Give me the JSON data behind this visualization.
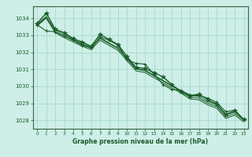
{
  "background_color": "#ceeee8",
  "grid_color": "#aaddcc",
  "line_color": "#1a5c28",
  "x_label": "Graphe pression niveau de la mer (hPa)",
  "ylim": [
    1027.5,
    1034.7
  ],
  "xlim": [
    -0.5,
    23.5
  ],
  "yticks": [
    1028,
    1029,
    1030,
    1031,
    1032,
    1033,
    1034
  ],
  "xticks": [
    0,
    1,
    2,
    3,
    4,
    5,
    6,
    7,
    8,
    9,
    10,
    11,
    12,
    13,
    14,
    15,
    16,
    17,
    18,
    19,
    20,
    21,
    22,
    23
  ],
  "series_no_marker": [
    [
      1033.65,
      1034.1,
      1033.3,
      1033.05,
      1032.75,
      1032.5,
      1032.3,
      1032.85,
      1032.55,
      1032.25,
      1031.65,
      1031.05,
      1030.95,
      1030.65,
      1030.35,
      1030.05,
      1029.75,
      1029.45,
      1029.4,
      1029.1,
      1028.9,
      1028.3,
      1028.5,
      1028.05
    ],
    [
      1033.55,
      1034.0,
      1033.15,
      1032.85,
      1032.6,
      1032.35,
      1032.15,
      1032.7,
      1032.4,
      1032.1,
      1031.5,
      1030.9,
      1030.8,
      1030.5,
      1030.2,
      1029.9,
      1029.6,
      1029.25,
      1029.2,
      1028.9,
      1028.7,
      1028.1,
      1028.3,
      1027.9
    ],
    [
      1033.6,
      1034.05,
      1033.2,
      1032.95,
      1032.7,
      1032.45,
      1032.25,
      1032.8,
      1032.5,
      1032.2,
      1031.6,
      1031.0,
      1030.9,
      1030.6,
      1030.3,
      1030.0,
      1029.7,
      1029.35,
      1029.3,
      1029.0,
      1028.8,
      1028.2,
      1028.4,
      1028.0
    ]
  ],
  "main_series": [
    1033.7,
    1034.3,
    1033.35,
    1033.15,
    1032.8,
    1032.6,
    1032.35,
    1033.05,
    1032.75,
    1032.45,
    1031.75,
    1031.1,
    1031.05,
    1030.8,
    1030.55,
    1030.1,
    1029.65,
    1029.4,
    1029.55,
    1029.2,
    1028.95,
    1028.35,
    1028.55,
    1028.05
  ],
  "line2_series": [
    1033.6,
    1033.25,
    1033.2,
    1032.95,
    1032.7,
    1032.4,
    1032.25,
    1032.9,
    1032.7,
    1032.4,
    1031.55,
    1031.35,
    1031.3,
    1030.7,
    1030.1,
    1029.8,
    1029.75,
    1029.5,
    1029.45,
    1029.3,
    1029.05,
    1028.5,
    1028.6,
    1028.05
  ]
}
